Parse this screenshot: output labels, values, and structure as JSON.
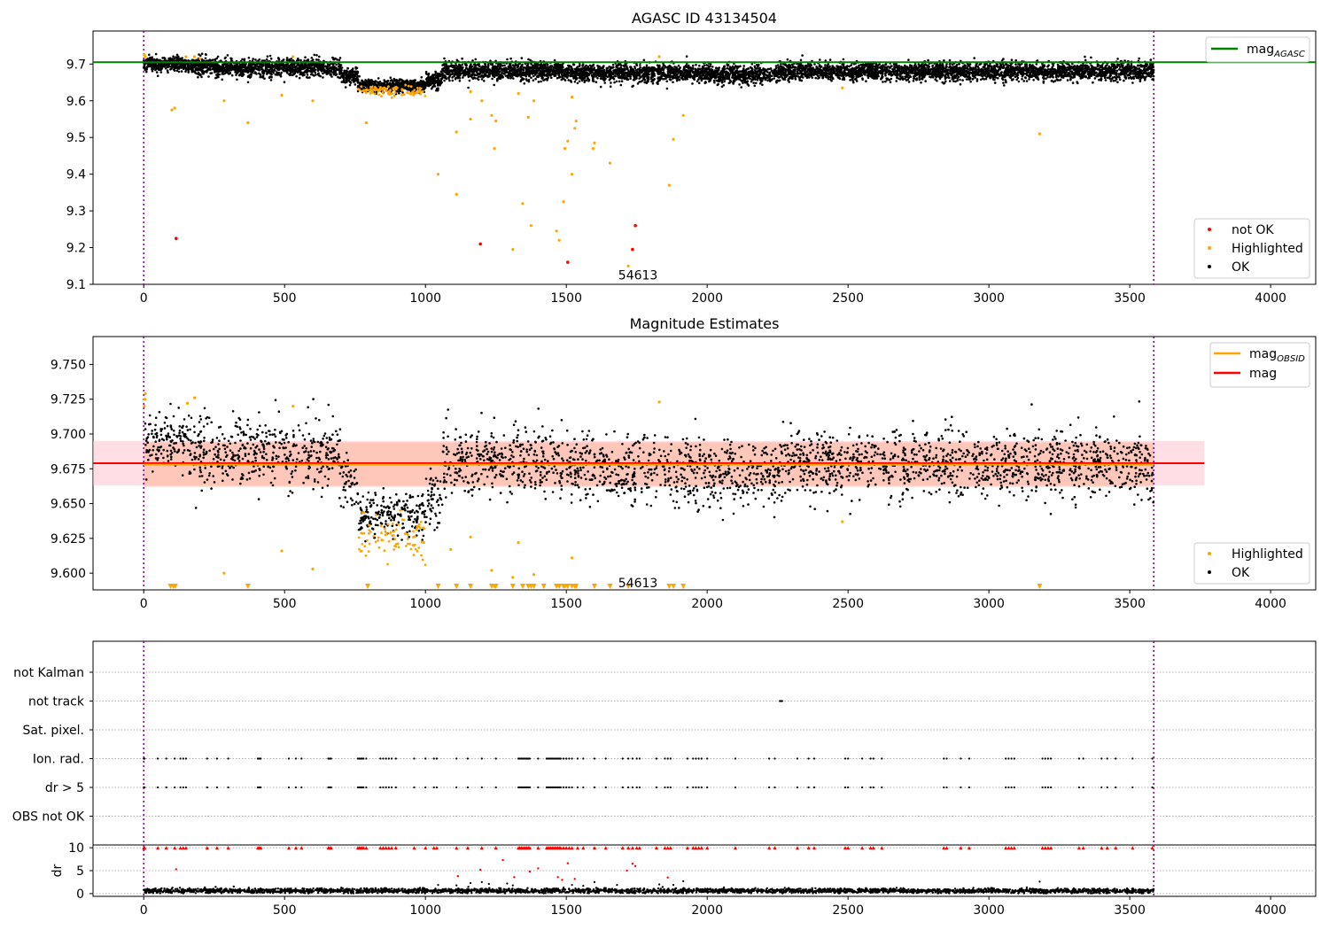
{
  "chart_data": [
    {
      "type": "scatter",
      "title": "AGASC ID 43134504",
      "xlim": [
        -180,
        4160
      ],
      "ylim": [
        9.1,
        9.79
      ],
      "x_ticks": [
        0,
        500,
        1000,
        1500,
        2000,
        2500,
        3000,
        3500,
        4000
      ],
      "y_ticks": [
        9.1,
        9.2,
        9.3,
        9.4,
        9.5,
        9.6,
        9.7
      ],
      "y_tick_labels": [
        "9.1",
        "9.2",
        "9.3",
        "9.4",
        "9.5",
        "9.6",
        "9.7"
      ],
      "vlines": [
        0,
        3585
      ],
      "hline": {
        "name": "mag",
        "subscript": "AGASC",
        "value": 9.705,
        "color": "#008000"
      },
      "annotation": {
        "text": "54613",
        "x": 1722,
        "y": 9.125
      },
      "legend_top": [
        {
          "label": "mag",
          "subscript": "AGASC",
          "color": "#008000",
          "kind": "line"
        }
      ],
      "legend_bottom": [
        {
          "label": "not OK",
          "color": "#ff0000",
          "kind": "dot"
        },
        {
          "label": "Highlighted",
          "color": "#ffa500",
          "kind": "dot"
        },
        {
          "label": "OK",
          "color": "#000000",
          "kind": "dot"
        }
      ],
      "segments": [
        {
          "x0": 0,
          "x1": 160,
          "mean": 9.7,
          "sd": 0.01
        },
        {
          "x0": 160,
          "x1": 250,
          "mean": 9.695,
          "sd": 0.012
        },
        {
          "x0": 250,
          "x1": 700,
          "mean": 9.69,
          "sd": 0.012
        },
        {
          "x0": 700,
          "x1": 760,
          "mean": 9.67,
          "sd": 0.012
        },
        {
          "x0": 760,
          "x1": 1000,
          "mean": 9.642,
          "sd": 0.008
        },
        {
          "x0": 1000,
          "x1": 1060,
          "mean": 9.655,
          "sd": 0.01
        },
        {
          "x0": 1060,
          "x1": 1500,
          "mean": 9.682,
          "sd": 0.012
        },
        {
          "x0": 1500,
          "x1": 1950,
          "mean": 9.676,
          "sd": 0.012
        },
        {
          "x0": 1950,
          "x1": 2250,
          "mean": 9.672,
          "sd": 0.012
        },
        {
          "x0": 2250,
          "x1": 3585,
          "mean": 9.68,
          "sd": 0.012
        }
      ],
      "highlighted_points": [
        [
          2,
          9.725
        ],
        [
          6,
          9.72
        ],
        [
          100,
          9.575
        ],
        [
          110,
          9.58
        ],
        [
          150,
          9.72
        ],
        [
          180,
          9.72
        ],
        [
          200,
          9.715
        ],
        [
          285,
          9.6
        ],
        [
          370,
          9.54
        ],
        [
          490,
          9.615
        ],
        [
          530,
          9.72
        ],
        [
          600,
          9.6
        ],
        [
          790,
          9.54
        ],
        [
          1045,
          9.4
        ],
        [
          1110,
          9.515
        ],
        [
          1110,
          9.345
        ],
        [
          1160,
          9.55
        ],
        [
          1160,
          9.625
        ],
        [
          1200,
          9.6
        ],
        [
          1235,
          9.56
        ],
        [
          1245,
          9.47
        ],
        [
          1250,
          9.545
        ],
        [
          1310,
          9.195
        ],
        [
          1330,
          9.62
        ],
        [
          1345,
          9.32
        ],
        [
          1365,
          9.555
        ],
        [
          1375,
          9.26
        ],
        [
          1385,
          9.6
        ],
        [
          1465,
          9.245
        ],
        [
          1475,
          9.22
        ],
        [
          1490,
          9.325
        ],
        [
          1495,
          9.47
        ],
        [
          1505,
          9.49
        ],
        [
          1520,
          9.4
        ],
        [
          1520,
          9.61
        ],
        [
          1530,
          9.525
        ],
        [
          1535,
          9.545
        ],
        [
          1595,
          9.47
        ],
        [
          1600,
          9.485
        ],
        [
          1655,
          9.43
        ],
        [
          1720,
          9.15
        ],
        [
          1830,
          9.72
        ],
        [
          1865,
          9.37
        ],
        [
          1880,
          9.495
        ],
        [
          1915,
          9.56
        ],
        [
          2480,
          9.635
        ],
        [
          3180,
          9.51
        ]
      ],
      "dip_highlighted": {
        "x0": 760,
        "x1": 1000,
        "mean": 9.627,
        "sd": 0.007,
        "n": 90
      },
      "not_ok_points": [
        [
          115,
          9.225
        ],
        [
          1195,
          9.21
        ],
        [
          1505,
          9.16
        ],
        [
          1735,
          9.195
        ],
        [
          1745,
          9.26
        ]
      ]
    },
    {
      "type": "scatter",
      "title": "Magnitude Estimates",
      "xlim": [
        -180,
        4160
      ],
      "ylim": [
        9.588,
        9.77
      ],
      "x_ticks": [
        0,
        500,
        1000,
        1500,
        2000,
        2500,
        3000,
        3500,
        4000
      ],
      "y_ticks": [
        9.6,
        9.625,
        9.65,
        9.675,
        9.7,
        9.725,
        9.75
      ],
      "y_tick_labels": [
        "9.600",
        "9.625",
        "9.650",
        "9.675",
        "9.700",
        "9.725",
        "9.750"
      ],
      "vlines": [
        0,
        3585
      ],
      "mag": {
        "value": 9.679,
        "lo": 9.663,
        "hi": 9.695,
        "x0": -180,
        "x1": 3765,
        "color": "#ff0000"
      },
      "mag_obsid": {
        "value": 9.678,
        "lo": 9.662,
        "hi": 9.694,
        "x0": 0,
        "x1": 3585,
        "color": "#ffa500"
      },
      "annotation": {
        "text": "54613",
        "x": 1722,
        "y": 9.593
      },
      "legend_top": [
        {
          "label": "mag",
          "subscript": "OBSID",
          "color": "#ffa500",
          "kind": "line"
        },
        {
          "label": "mag",
          "subscript": "",
          "color": "#ff0000",
          "kind": "line"
        }
      ],
      "legend_bottom": [
        {
          "label": "Highlighted",
          "color": "#ffa500",
          "kind": "dot"
        },
        {
          "label": "OK",
          "color": "#000000",
          "kind": "dot"
        }
      ],
      "segments": [
        {
          "x0": 0,
          "x1": 160,
          "mean": 9.695,
          "sd": 0.01
        },
        {
          "x0": 160,
          "x1": 700,
          "mean": 9.686,
          "sd": 0.012
        },
        {
          "x0": 700,
          "x1": 760,
          "mean": 9.665,
          "sd": 0.011
        },
        {
          "x0": 760,
          "x1": 1000,
          "mean": 9.642,
          "sd": 0.008
        },
        {
          "x0": 1000,
          "x1": 1060,
          "mean": 9.654,
          "sd": 0.01
        },
        {
          "x0": 1060,
          "x1": 1500,
          "mean": 9.68,
          "sd": 0.012
        },
        {
          "x0": 1500,
          "x1": 1950,
          "mean": 9.675,
          "sd": 0.012
        },
        {
          "x0": 1950,
          "x1": 2250,
          "mean": 9.671,
          "sd": 0.012
        },
        {
          "x0": 2250,
          "x1": 3585,
          "mean": 9.678,
          "sd": 0.012
        }
      ],
      "highlighted_points": [
        [
          2,
          9.72
        ],
        [
          4,
          9.725
        ],
        [
          6,
          9.729
        ],
        [
          155,
          9.722
        ],
        [
          180,
          9.726
        ],
        [
          285,
          9.6
        ],
        [
          490,
          9.616
        ],
        [
          530,
          9.72
        ],
        [
          600,
          9.603
        ],
        [
          1090,
          9.617
        ],
        [
          1160,
          9.626
        ],
        [
          1235,
          9.602
        ],
        [
          1310,
          9.597
        ],
        [
          1330,
          9.622
        ],
        [
          1385,
          9.599
        ],
        [
          1520,
          9.611
        ],
        [
          1830,
          9.723
        ],
        [
          2480,
          9.637
        ]
      ],
      "dip_highlighted": {
        "x0": 760,
        "x1": 1000,
        "mean": 9.627,
        "sd": 0.007,
        "n": 90
      },
      "offscale_markers": [
        95,
        105,
        112,
        370,
        795,
        1045,
        1110,
        1160,
        1235,
        1245,
        1250,
        1310,
        1345,
        1365,
        1375,
        1385,
        1420,
        1465,
        1475,
        1490,
        1495,
        1505,
        1520,
        1530,
        1535,
        1600,
        1655,
        1720,
        1865,
        1880,
        1915,
        3180
      ]
    },
    {
      "type": "scatter",
      "title": "",
      "xlim": [
        -180,
        4160
      ],
      "categories": [
        "not Kalman",
        "not track",
        "Sat. pixel.",
        "Ion. rad.",
        "dr > 5",
        "OBS not OK"
      ],
      "vlines": [
        0,
        3585
      ],
      "flag_positions": {
        "not Kalman": [],
        "not track": [
          2258,
          2262,
          2266
        ],
        "Sat. pixel.": [],
        "Ion. rad.": [
          0,
          3,
          50,
          80,
          110,
          130,
          140,
          150,
          225,
          260,
          300,
          405,
          410,
          415,
          515,
          540,
          560,
          655,
          660,
          665,
          760,
          765,
          770,
          775,
          780,
          790,
          840,
          850,
          860,
          870,
          880,
          895,
          960,
          1000,
          1030,
          1040,
          1110,
          1150,
          1200,
          1250,
          1330,
          1335,
          1340,
          1345,
          1350,
          1355,
          1360,
          1365,
          1370,
          1400,
          1430,
          1435,
          1440,
          1445,
          1450,
          1455,
          1460,
          1465,
          1470,
          1475,
          1480,
          1490,
          1500,
          1510,
          1520,
          1540,
          1560,
          1600,
          1640,
          1700,
          1720,
          1735,
          1750,
          1760,
          1820,
          1850,
          1860,
          1870,
          1930,
          1950,
          1960,
          1970,
          1980,
          2000,
          2100,
          2220,
          2240,
          2320,
          2360,
          2380,
          2490,
          2500,
          2550,
          2580,
          2590,
          2620,
          2840,
          2850,
          2900,
          2930,
          3060,
          3070,
          3080,
          3090,
          3190,
          3200,
          3210,
          3220,
          3320,
          3335,
          3400,
          3420,
          3450,
          3510,
          3580
        ],
        "dr > 5": [
          0,
          3,
          50,
          80,
          110,
          130,
          140,
          150,
          225,
          260,
          300,
          405,
          410,
          415,
          515,
          540,
          560,
          655,
          660,
          665,
          760,
          765,
          770,
          775,
          780,
          790,
          840,
          850,
          860,
          870,
          880,
          895,
          960,
          1000,
          1030,
          1040,
          1110,
          1150,
          1200,
          1250,
          1330,
          1335,
          1340,
          1345,
          1350,
          1355,
          1360,
          1365,
          1370,
          1400,
          1430,
          1435,
          1440,
          1445,
          1450,
          1455,
          1460,
          1465,
          1470,
          1475,
          1480,
          1490,
          1500,
          1510,
          1520,
          1540,
          1560,
          1600,
          1640,
          1700,
          1720,
          1735,
          1750,
          1760,
          1820,
          1850,
          1860,
          1870,
          1930,
          1950,
          1960,
          1970,
          1980,
          2000,
          2100,
          2220,
          2240,
          2320,
          2360,
          2380,
          2490,
          2500,
          2550,
          2580,
          2590,
          2620,
          2840,
          2850,
          2900,
          2930,
          3060,
          3070,
          3080,
          3090,
          3190,
          3200,
          3210,
          3220,
          3320,
          3335,
          3400,
          3420,
          3450,
          3510,
          3580
        ],
        "OBS not OK": []
      }
    },
    {
      "type": "scatter",
      "title": "",
      "ylabel": "dr",
      "xlim": [
        -180,
        4160
      ],
      "ylim": [
        -0.6,
        10.6
      ],
      "x_ticks": [
        0,
        500,
        1000,
        1500,
        2000,
        2500,
        3000,
        3500,
        4000
      ],
      "y_ticks": [
        0,
        5,
        10
      ],
      "y_tick_labels": [
        "0",
        "5",
        "10"
      ],
      "vlines": [
        0,
        3585
      ],
      "baseline": {
        "x0": 0,
        "x1": 3585,
        "mean": 0.6,
        "sd": 0.25
      },
      "red_points": [
        [
          115,
          5.3
        ],
        [
          1115,
          3.8
        ],
        [
          1195,
          5.2
        ],
        [
          1275,
          7.3
        ],
        [
          1315,
          3.6
        ],
        [
          1370,
          4.8
        ],
        [
          1400,
          5.5
        ],
        [
          1470,
          3.6
        ],
        [
          1485,
          3.0
        ],
        [
          1505,
          6.6
        ],
        [
          1530,
          3.2
        ],
        [
          1715,
          5.0
        ],
        [
          1735,
          6.5
        ],
        [
          1745,
          6.0
        ],
        [
          1860,
          3.5
        ]
      ],
      "black_outliers": [
        [
          1045,
          1.9
        ],
        [
          1110,
          1.8
        ],
        [
          1160,
          2.3
        ],
        [
          1200,
          2.5
        ],
        [
          1225,
          2.1
        ],
        [
          1290,
          2.2
        ],
        [
          1310,
          1.8
        ],
        [
          1520,
          1.9
        ],
        [
          1560,
          1.7
        ],
        [
          1600,
          2.5
        ],
        [
          1680,
          1.9
        ],
        [
          1830,
          2.0
        ],
        [
          1880,
          1.9
        ],
        [
          1915,
          2.7
        ],
        [
          3180,
          2.6
        ]
      ],
      "markers_at": 10
    }
  ]
}
